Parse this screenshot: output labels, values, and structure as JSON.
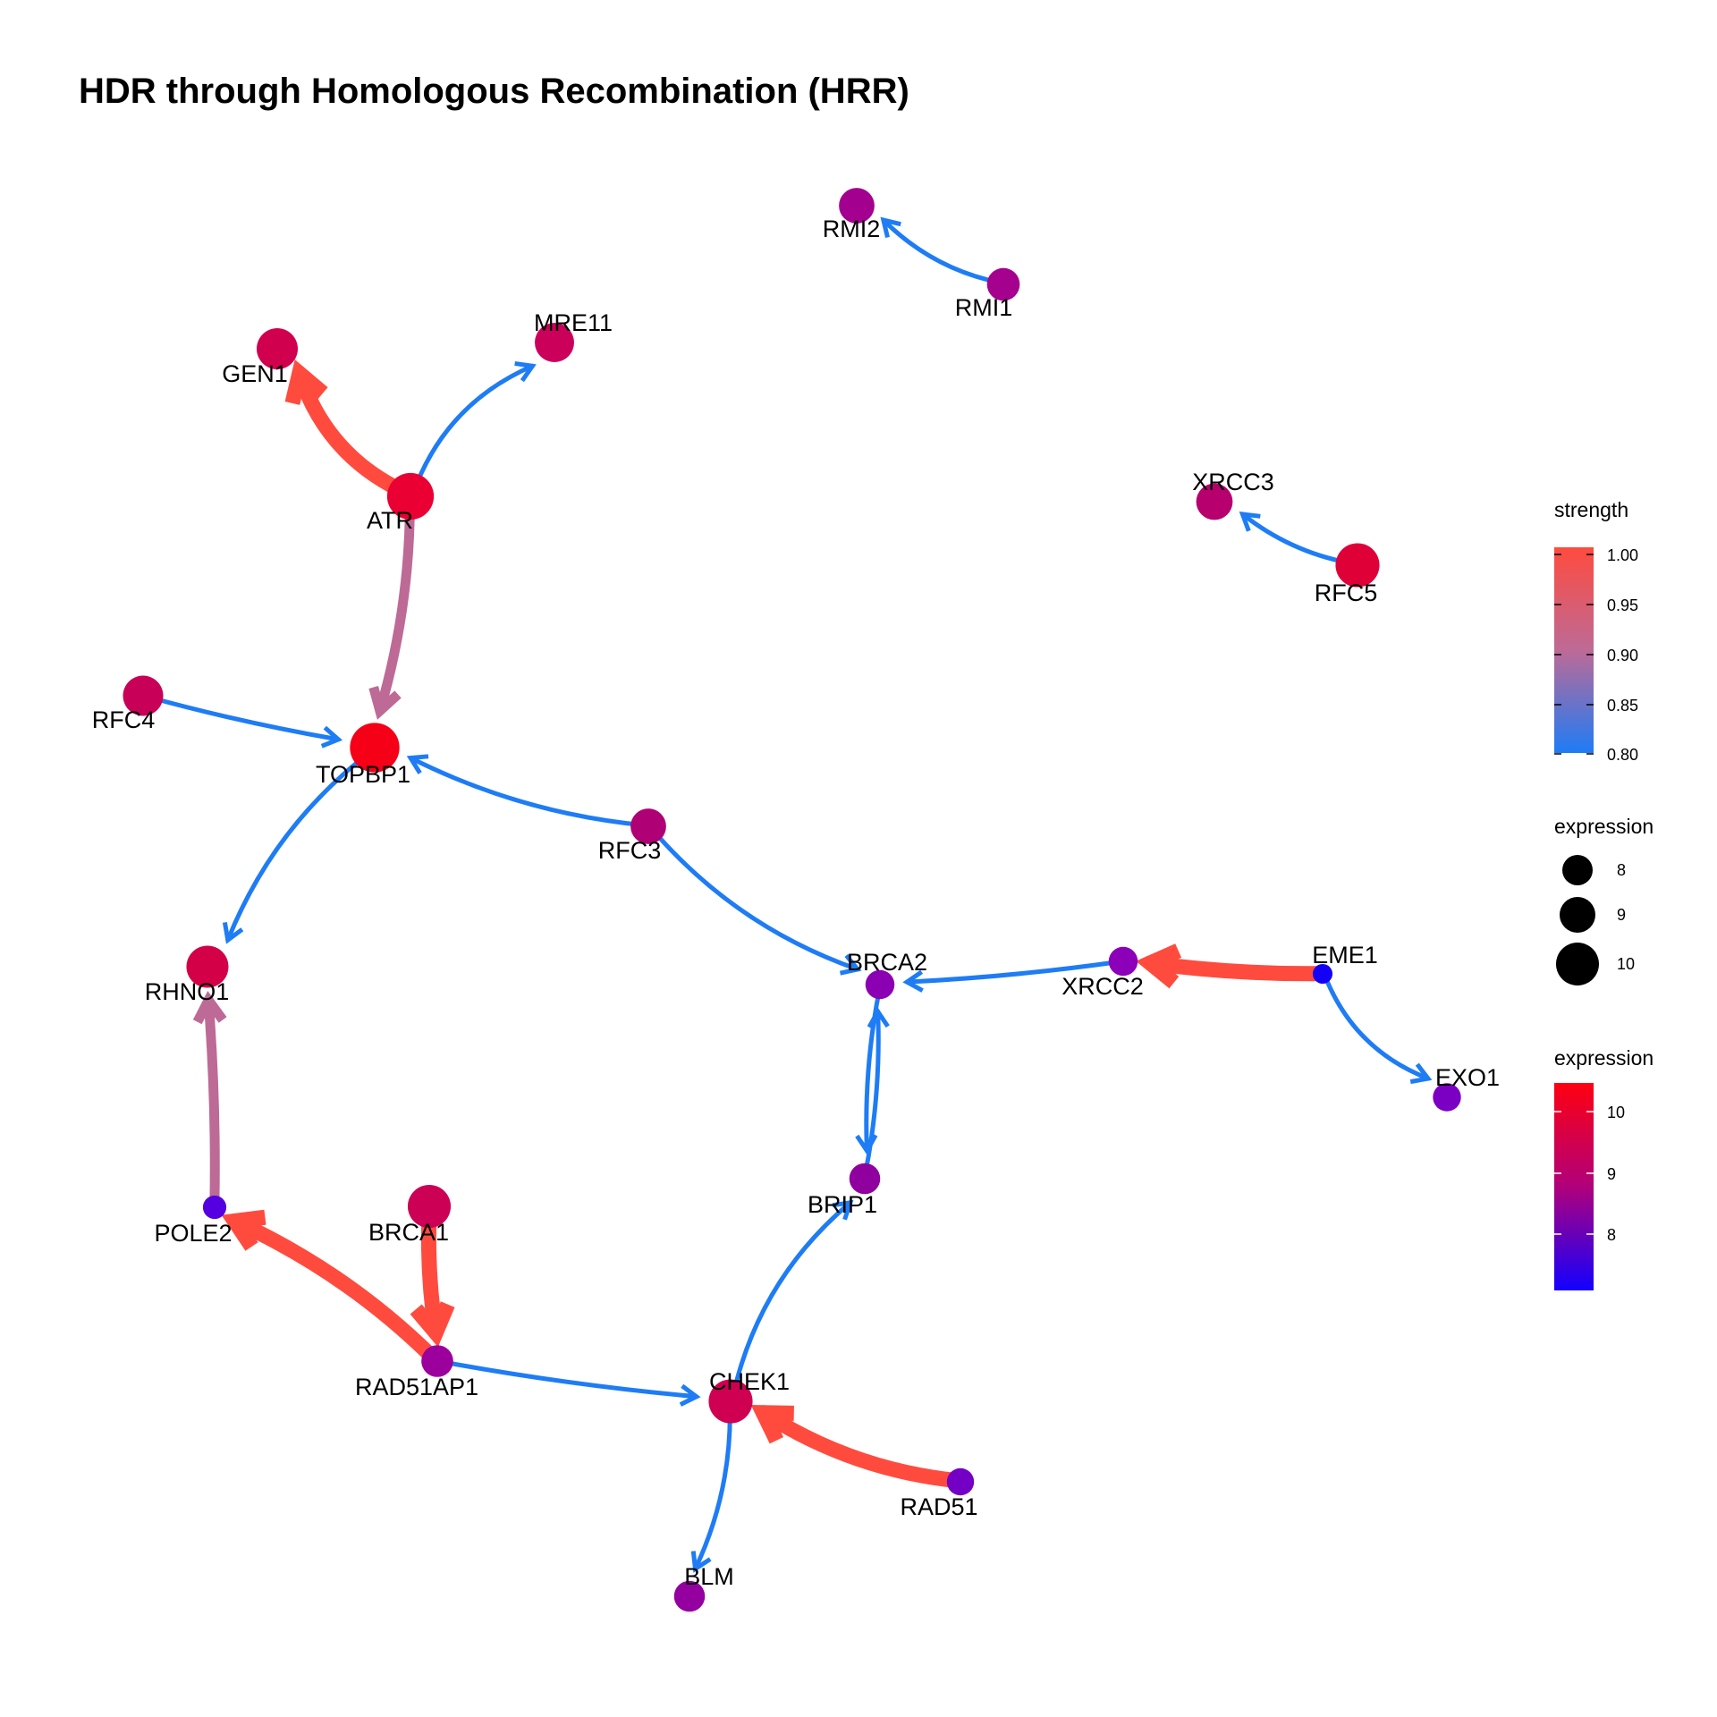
{
  "title": "HDR through Homologous Recombination (HRR)",
  "nodes": [
    {
      "id": "RMI2",
      "label": "RMI2",
      "expression": 8.9,
      "color": "#a3008f"
    },
    {
      "id": "RMI1",
      "label": "RMI1",
      "expression": 8.6,
      "color": "#a6008f"
    },
    {
      "id": "MRE11",
      "label": "MRE11",
      "expression": 9.3,
      "color": "#cb005a"
    },
    {
      "id": "GEN1",
      "label": "GEN1",
      "expression": 9.5,
      "color": "#d1004e"
    },
    {
      "id": "ATR",
      "label": "ATR",
      "expression": 10.1,
      "color": "#ea0033"
    },
    {
      "id": "XRCC3",
      "label": "XRCC3",
      "expression": 9.0,
      "color": "#b7006e"
    },
    {
      "id": "RFC5",
      "label": "RFC5",
      "expression": 9.8,
      "color": "#e00038"
    },
    {
      "id": "RFC4",
      "label": "RFC4",
      "expression": 9.4,
      "color": "#c90058"
    },
    {
      "id": "TOPBP1",
      "label": "TOPBP1",
      "expression": 10.4,
      "color": "#f50016"
    },
    {
      "id": "RFC3",
      "label": "RFC3",
      "expression": 8.9,
      "color": "#b00075"
    },
    {
      "id": "RHNO1",
      "label": "RHNO1",
      "expression": 9.6,
      "color": "#d30048"
    },
    {
      "id": "BRCA2",
      "label": "BRCA2",
      "expression": 8.2,
      "color": "#8b00b3"
    },
    {
      "id": "XRCC2",
      "label": "XRCC2",
      "expression": 8.2,
      "color": "#8b00b8"
    },
    {
      "id": "EME1",
      "label": "EME1",
      "expression": 7.2,
      "color": "#1400f5"
    },
    {
      "id": "EXO1",
      "label": "EXO1",
      "expression": 8.1,
      "color": "#7c00c4"
    },
    {
      "id": "BRIP1",
      "label": "BRIP1",
      "expression": 8.4,
      "color": "#90009f"
    },
    {
      "id": "POLE2",
      "label": "POLE2",
      "expression": 7.6,
      "color": "#5500e0"
    },
    {
      "id": "BRCA1",
      "label": "BRCA1",
      "expression": 9.7,
      "color": "#cc0055"
    },
    {
      "id": "RAD51AP1",
      "label": "RAD51AP1",
      "expression": 8.5,
      "color": "#9b009c"
    },
    {
      "id": "CHEK1",
      "label": "CHEK1",
      "expression": 9.8,
      "color": "#cf0052"
    },
    {
      "id": "RAD51",
      "label": "RAD51",
      "expression": 8.0,
      "color": "#7400c6"
    },
    {
      "id": "BLM",
      "label": "BLM",
      "expression": 8.4,
      "color": "#9400a0"
    }
  ],
  "edges": [
    {
      "from": "RMI1",
      "to": "RMI2",
      "strength": 0.8
    },
    {
      "from": "ATR",
      "to": "GEN1",
      "strength": 1.0
    },
    {
      "from": "ATR",
      "to": "MRE11",
      "strength": 0.8
    },
    {
      "from": "ATR",
      "to": "TOPBP1",
      "strength": 0.9
    },
    {
      "from": "RFC5",
      "to": "XRCC3",
      "strength": 0.8
    },
    {
      "from": "RFC4",
      "to": "TOPBP1",
      "strength": 0.8
    },
    {
      "from": "RFC3",
      "to": "TOPBP1",
      "strength": 0.8
    },
    {
      "from": "RFC3",
      "to": "BRCA2",
      "strength": 0.8
    },
    {
      "from": "TOPBP1",
      "to": "RHNO1",
      "strength": 0.8
    },
    {
      "from": "XRCC2",
      "to": "BRCA2",
      "strength": 0.8
    },
    {
      "from": "EME1",
      "to": "XRCC2",
      "strength": 1.0
    },
    {
      "from": "EME1",
      "to": "EXO1",
      "strength": 0.8
    },
    {
      "from": "BRCA2",
      "to": "BRIP1",
      "strength": 0.8
    },
    {
      "from": "BRIP1",
      "to": "BRCA2",
      "strength": 0.8
    },
    {
      "from": "POLE2",
      "to": "RHNO1",
      "strength": 0.9
    },
    {
      "from": "RAD51AP1",
      "to": "POLE2",
      "strength": 1.0
    },
    {
      "from": "BRCA1",
      "to": "RAD51AP1",
      "strength": 1.0
    },
    {
      "from": "RAD51AP1",
      "to": "CHEK1",
      "strength": 0.8
    },
    {
      "from": "CHEK1",
      "to": "BRIP1",
      "strength": 0.8
    },
    {
      "from": "RAD51",
      "to": "CHEK1",
      "strength": 1.0
    },
    {
      "from": "CHEK1",
      "to": "BLM",
      "strength": 0.8
    }
  ],
  "legend": {
    "strength": {
      "title": "strength",
      "ticks": [
        "1.00",
        "0.95",
        "0.90",
        "0.85",
        "0.80"
      ],
      "colors": {
        "high": "#ff4b3e",
        "mid": "#bd6a96",
        "low": "#1e7cf5"
      }
    },
    "expression_size": {
      "title": "expression",
      "ticks": [
        "8",
        "9",
        "10"
      ]
    },
    "expression_color": {
      "title": "expression",
      "ticks": [
        "10",
        "9",
        "8"
      ],
      "colors": {
        "high": "#ff0010",
        "mid": "#b0007a",
        "low": "#1200ff"
      }
    }
  }
}
